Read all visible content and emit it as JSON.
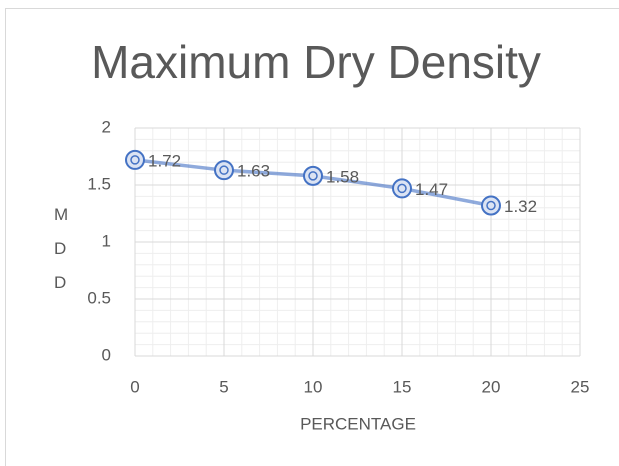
{
  "chart_data": {
    "type": "line",
    "title": "Maximum Dry Density",
    "x_label": "PERCENTAGE",
    "y_label": "MDD",
    "x": [
      0,
      5,
      10,
      15,
      20
    ],
    "series": [
      {
        "name": "MDD",
        "color": "#4472c4",
        "values": [
          1.72,
          1.63,
          1.58,
          1.47,
          1.32
        ]
      }
    ],
    "xlim": [
      0,
      25
    ],
    "xticks": [
      0,
      5,
      10,
      15,
      20,
      25
    ],
    "ylim": [
      0,
      2
    ],
    "yticks": [
      0,
      0.5,
      1,
      1.5,
      2
    ],
    "grid": true,
    "minor_grid": true,
    "data_labels": true
  }
}
